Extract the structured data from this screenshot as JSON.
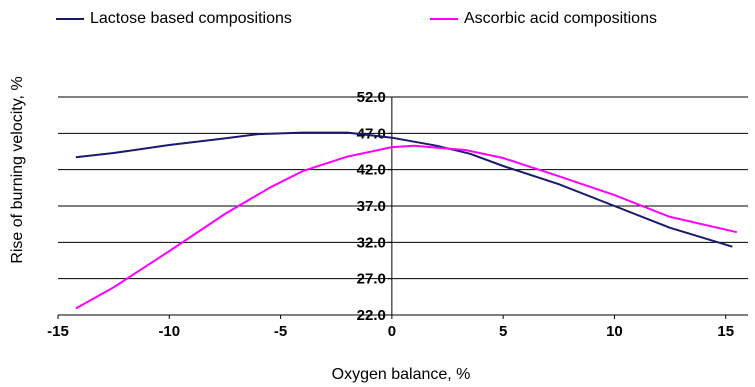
{
  "chart_data": {
    "type": "line",
    "xlabel": "Oxygen balance, %",
    "ylabel": "Rise of burning velocity, %",
    "xlim": [
      -15,
      16
    ],
    "ylim": [
      22.0,
      52.0
    ],
    "x_ticks": [
      "-15",
      "-10",
      "-5",
      "0",
      "5",
      "10",
      "15"
    ],
    "y_ticks": [
      "22.0",
      "27.0",
      "32.0",
      "37.0",
      "42.0",
      "47.0",
      "52.0"
    ],
    "grid": "horizontal",
    "legend_position": "top",
    "series": [
      {
        "name": "Lactose based compositions",
        "color": "#1a1a6e",
        "points": [
          [
            -14.2,
            43.7
          ],
          [
            -12.5,
            44.3
          ],
          [
            -10,
            45.4
          ],
          [
            -7.5,
            46.3
          ],
          [
            -6,
            46.9
          ],
          [
            -4,
            47.1
          ],
          [
            -2,
            47.1
          ],
          [
            0,
            46.4
          ],
          [
            2,
            45.3
          ],
          [
            3.5,
            44.2
          ],
          [
            5,
            42.5
          ],
          [
            7.5,
            40.0
          ],
          [
            10,
            37.0
          ],
          [
            12.5,
            34.0
          ],
          [
            15.3,
            31.4
          ]
        ]
      },
      {
        "name": "Ascorbic acid compositions",
        "color": "#ff00ff",
        "points": [
          [
            -14.2,
            22.9
          ],
          [
            -12.5,
            25.8
          ],
          [
            -10,
            30.8
          ],
          [
            -7.5,
            35.9
          ],
          [
            -5.5,
            39.5
          ],
          [
            -4,
            41.8
          ],
          [
            -2,
            43.8
          ],
          [
            0,
            45.1
          ],
          [
            1,
            45.3
          ],
          [
            3.3,
            44.7
          ],
          [
            5,
            43.6
          ],
          [
            7.5,
            41.1
          ],
          [
            10,
            38.5
          ],
          [
            12.5,
            35.5
          ],
          [
            15.5,
            33.4
          ]
        ]
      }
    ]
  }
}
